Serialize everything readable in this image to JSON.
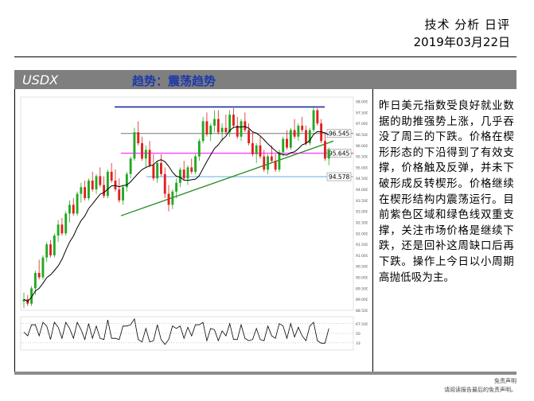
{
  "header": {
    "title": "技术 分析 日评",
    "date": "2019年03月22日"
  },
  "banner": {
    "ticker": "USDX",
    "trend": "趋势：震荡趋势"
  },
  "chart_data": {
    "type": "candlestick",
    "levels": [
      {
        "label": "96.545",
        "value": 96.545,
        "color": "#9b9b9b"
      },
      {
        "label": "95.645",
        "value": 95.645,
        "color": "#ff40ff"
      },
      {
        "label": "94.578",
        "value": 94.578,
        "color": "#8fc4ee"
      }
    ],
    "resistance_line": {
      "value": 97.75,
      "color": "#1f2d9c"
    },
    "trendline_color": "#1f8a1f",
    "moving_average_color": "#000000",
    "y_tick_labels": [
      "98.000",
      "97.500",
      "97.000",
      "96.500",
      "96.000",
      "95.500",
      "95.000",
      "94.500",
      "94.000",
      "93.500",
      "93.000",
      "92.500",
      "92.000",
      "91.500",
      "91.000",
      "90.500",
      "90.000",
      "89.500",
      "89.000",
      "88.500"
    ],
    "oscillator_tick_labels": [
      "67.500",
      "50",
      "33"
    ],
    "candles": [
      [
        88.9,
        89.3,
        88.6,
        89.0
      ],
      [
        89.0,
        89.2,
        88.7,
        88.8
      ],
      [
        88.8,
        89.6,
        88.7,
        89.5
      ],
      [
        89.5,
        90.3,
        89.2,
        90.2
      ],
      [
        90.2,
        90.8,
        89.9,
        90.0
      ],
      [
        90.0,
        91.0,
        89.9,
        90.9
      ],
      [
        90.9,
        91.6,
        90.7,
        91.5
      ],
      [
        91.5,
        91.7,
        90.9,
        91.0
      ],
      [
        91.0,
        92.0,
        90.9,
        91.9
      ],
      [
        91.9,
        92.6,
        91.6,
        92.4
      ],
      [
        92.4,
        92.7,
        91.9,
        92.0
      ],
      [
        92.0,
        93.0,
        91.9,
        92.9
      ],
      [
        92.9,
        93.5,
        92.5,
        93.3
      ],
      [
        93.3,
        93.6,
        92.8,
        92.9
      ],
      [
        92.9,
        93.9,
        92.8,
        93.8
      ],
      [
        93.8,
        94.3,
        93.4,
        94.1
      ],
      [
        94.1,
        94.4,
        93.5,
        93.6
      ],
      [
        93.6,
        94.5,
        93.5,
        94.4
      ],
      [
        94.4,
        94.8,
        93.9,
        94.0
      ],
      [
        94.0,
        94.7,
        93.8,
        94.6
      ],
      [
        94.6,
        95.0,
        94.1,
        94.2
      ],
      [
        94.2,
        94.6,
        93.6,
        93.7
      ],
      [
        93.7,
        94.9,
        93.6,
        94.8
      ],
      [
        94.8,
        95.2,
        94.3,
        94.4
      ],
      [
        94.4,
        94.9,
        93.9,
        94.0
      ],
      [
        94.0,
        94.5,
        93.4,
        93.5
      ],
      [
        93.5,
        94.2,
        93.3,
        94.1
      ],
      [
        94.1,
        94.8,
        93.9,
        94.7
      ],
      [
        94.7,
        95.5,
        94.5,
        95.4
      ],
      [
        95.4,
        96.8,
        95.3,
        96.6
      ],
      [
        96.6,
        97.1,
        96.0,
        96.1
      ],
      [
        96.1,
        96.4,
        95.3,
        95.4
      ],
      [
        95.4,
        96.0,
        95.0,
        95.8
      ],
      [
        95.8,
        96.2,
        95.0,
        95.1
      ],
      [
        95.1,
        95.6,
        94.4,
        94.5
      ],
      [
        94.5,
        95.3,
        94.3,
        95.2
      ],
      [
        95.2,
        95.6,
        94.6,
        94.7
      ],
      [
        94.7,
        95.0,
        93.6,
        93.8
      ],
      [
        93.8,
        94.2,
        93.0,
        93.3
      ],
      [
        93.3,
        94.0,
        93.1,
        93.9
      ],
      [
        93.9,
        94.5,
        93.6,
        94.3
      ],
      [
        94.3,
        95.0,
        94.1,
        94.9
      ],
      [
        94.9,
        95.3,
        94.4,
        94.5
      ],
      [
        94.5,
        95.1,
        94.2,
        95.0
      ],
      [
        95.0,
        95.4,
        94.7,
        94.8
      ],
      [
        94.8,
        95.6,
        94.7,
        95.5
      ],
      [
        95.5,
        96.3,
        95.3,
        96.2
      ],
      [
        96.2,
        97.3,
        96.1,
        97.1
      ],
      [
        97.1,
        97.5,
        96.4,
        96.5
      ],
      [
        96.5,
        97.0,
        96.2,
        96.9
      ],
      [
        96.9,
        97.6,
        96.6,
        97.2
      ],
      [
        97.2,
        97.6,
        96.5,
        96.6
      ],
      [
        96.6,
        97.0,
        96.2,
        96.8
      ],
      [
        96.8,
        97.4,
        96.5,
        96.6
      ],
      [
        96.6,
        97.6,
        96.4,
        97.4
      ],
      [
        97.4,
        97.7,
        96.8,
        96.9
      ],
      [
        96.9,
        97.3,
        96.3,
        96.4
      ],
      [
        96.4,
        97.2,
        96.2,
        97.1
      ],
      [
        97.1,
        97.5,
        96.6,
        96.7
      ],
      [
        96.7,
        97.0,
        96.0,
        96.1
      ],
      [
        96.1,
        96.6,
        95.5,
        95.6
      ],
      [
        95.6,
        96.1,
        95.2,
        96.0
      ],
      [
        96.0,
        96.4,
        95.4,
        95.5
      ],
      [
        95.5,
        95.8,
        94.8,
        94.9
      ],
      [
        94.9,
        95.6,
        94.7,
        95.5
      ],
      [
        95.5,
        96.0,
        95.2,
        95.3
      ],
      [
        95.3,
        95.6,
        94.8,
        94.9
      ],
      [
        94.9,
        95.8,
        94.8,
        95.7
      ],
      [
        95.7,
        96.4,
        95.5,
        96.3
      ],
      [
        96.3,
        96.7,
        95.8,
        95.9
      ],
      [
        95.9,
        96.8,
        95.8,
        96.7
      ],
      [
        96.7,
        97.2,
        96.3,
        96.4
      ],
      [
        96.4,
        97.0,
        96.2,
        96.9
      ],
      [
        96.9,
        97.3,
        96.6,
        96.7
      ],
      [
        96.7,
        96.9,
        96.0,
        96.1
      ],
      [
        96.1,
        96.8,
        96.0,
        96.7
      ],
      [
        96.7,
        97.8,
        96.6,
        97.6
      ],
      [
        97.6,
        97.7,
        96.9,
        97.0
      ],
      [
        97.0,
        97.2,
        96.1,
        96.2
      ],
      [
        96.2,
        96.6,
        95.3,
        95.4
      ],
      [
        95.4,
        95.9,
        95.1,
        95.8
      ]
    ]
  },
  "commentary": "昨日美元指数受良好就业数据的助推强势上涨，几乎吞没了周三的下跌。价格在楔形形态的下沿得到了有效支撑，价格触及反弹，并未下破形成反转楔形。价格继续在楔形结构内震荡运行。目前紫色区域和绿色线双重支撑，关注市场价格是继续下跌，还是回补这周缺口后再下跌。操作上今日以小周期高抛低吸为主。",
  "footer": {
    "line1": "免责声明",
    "line2": "请阅读报告最后的免责声明。"
  }
}
